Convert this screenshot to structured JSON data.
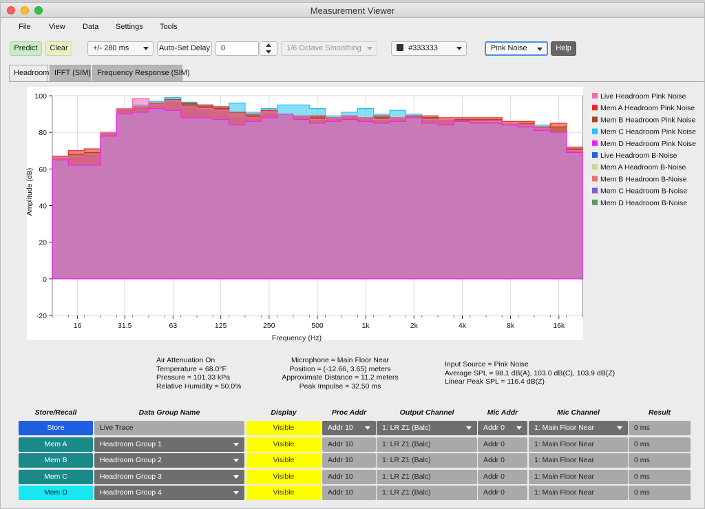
{
  "window": {
    "title": "Measurement Viewer"
  },
  "menu": [
    "File",
    "View",
    "Data",
    "Settings",
    "Tools"
  ],
  "toolbar": {
    "predict": "Predict",
    "clear": "Clear",
    "delay_range": "+/- 280 ms",
    "auto_set_delay": "Auto-Set Delay",
    "delay_value": "0",
    "smoothing": "1/6 Octave Smoothing",
    "color_value": "#333333",
    "color_swatch": "#333333",
    "noise_type": "Pink Noise",
    "help": "Help"
  },
  "tabs": [
    "Headroom",
    "IFFT (SIM)",
    "Frequency Response (SIM)"
  ],
  "chart_data": {
    "type": "area",
    "xlabel": "Frequency (Hz)",
    "ylabel": "Amplitude (dB)",
    "ylim": [
      -20,
      100
    ],
    "x_scale": "log",
    "x_ticks": [
      16,
      31.5,
      63,
      125,
      250,
      500,
      1000,
      2000,
      4000,
      8000,
      16000
    ],
    "x_tick_labels": [
      "16",
      "31.5",
      "63",
      "125",
      "250",
      "500",
      "1k",
      "2k",
      "4k",
      "8k",
      "16k"
    ],
    "y_ticks": [
      -20,
      0,
      20,
      40,
      60,
      80,
      100
    ],
    "bands_hz": [
      12.5,
      16,
      20,
      25,
      31.5,
      40,
      50,
      63,
      80,
      100,
      125,
      160,
      200,
      250,
      315,
      400,
      500,
      630,
      800,
      1000,
      1250,
      1600,
      2000,
      2500,
      3150,
      4000,
      5000,
      6300,
      8000,
      10000,
      12500,
      16000,
      20000
    ],
    "grid": true,
    "legend_position": "right",
    "legend": [
      {
        "name": "Live Headroom Pink Noise",
        "color": "#f06ab0"
      },
      {
        "name": "Mem A Headroom Pink Noise",
        "color": "#ee2222"
      },
      {
        "name": "Mem B Headroom Pink Noise",
        "color": "#a04a20"
      },
      {
        "name": "Mem C Headroom Pink Noise",
        "color": "#22c4ee"
      },
      {
        "name": "Mem D Headroom Pink Noise",
        "color": "#ee22ee"
      },
      {
        "name": "Live Headroom B-Noise",
        "color": "#1f5fe0"
      },
      {
        "name": "Mem A Headroom B-Noise",
        "color": "#c8d890"
      },
      {
        "name": "Mem B Headroom B-Noise",
        "color": "#f07070"
      },
      {
        "name": "Mem C Headroom B-Noise",
        "color": "#7a60d0"
      },
      {
        "name": "Mem D Headroom B-Noise",
        "color": "#5a9a5a"
      }
    ],
    "series": [
      {
        "name": "Mem C Headroom Pink Noise",
        "color": "#22c4ee",
        "values": [
          65.5,
          66,
          67.5,
          80,
          93,
          95,
          97,
          99,
          96.5,
          95,
          94,
          96,
          91,
          93,
          95,
          95,
          93,
          89,
          91,
          93,
          90,
          92,
          90,
          88,
          87,
          87,
          86,
          85,
          84,
          83,
          84,
          80,
          71
        ]
      },
      {
        "name": "Mem A Headroom Pink Noise",
        "color": "#ee2222",
        "values": [
          67,
          70,
          71,
          80,
          93,
          94,
          96,
          97,
          96,
          95,
          94,
          91,
          90,
          92,
          89,
          89,
          89,
          88,
          89,
          88,
          89,
          88,
          89,
          89,
          88,
          88,
          88,
          88,
          86,
          86,
          83,
          85,
          72
        ]
      },
      {
        "name": "Mem B Headroom Pink Noise",
        "color": "#a04a20",
        "values": [
          66,
          68,
          69,
          80,
          92,
          93,
          95,
          98,
          96,
          94,
          93,
          89,
          89,
          91,
          89,
          89,
          88,
          88,
          89,
          88,
          88,
          88,
          88,
          88,
          87,
          87,
          87,
          87,
          85,
          85,
          82,
          83,
          71
        ]
      },
      {
        "name": "Live Headroom Pink Noise",
        "color": "#f06ab0",
        "values": [
          66,
          67,
          68,
          80,
          93,
          98.5,
          95,
          97,
          94,
          93,
          92,
          89,
          88,
          91,
          90,
          89,
          87,
          88,
          89,
          88,
          87,
          88,
          88,
          87,
          87,
          86,
          86,
          86,
          85,
          84,
          82,
          80,
          70
        ]
      },
      {
        "name": "Mem D Headroom Pink Noise",
        "color": "#ee22ee",
        "values": [
          65,
          62,
          62,
          78,
          90,
          91,
          93,
          92,
          88,
          88,
          87,
          84,
          86,
          88,
          90,
          87,
          85,
          86,
          87,
          86,
          85,
          86,
          88,
          85,
          84,
          86,
          85,
          85,
          84,
          83,
          81,
          80,
          69
        ]
      }
    ]
  },
  "info": {
    "left": [
      "Air Attenuation On",
      "Temperature = 68.0°F",
      "Pressure = 101.33  kPa",
      "Relative Humidity = 50.0%"
    ],
    "middle": [
      "Microphone = Main Floor Near",
      "Position = (-12.66, 3.65) meters",
      "Approximate Distance = 11.2 meters",
      "Peak Impulse = 32.50 ms"
    ],
    "right": [
      "Input Source = Pink Noise",
      "Average SPL = 98.1 dB(A),  103.0 dB(C),  103.9 dB(Z)",
      "Linear Peak SPL = 116.4 dB(Z)"
    ]
  },
  "table": {
    "headers": [
      "Store/Recall",
      "Data Group Name",
      "Display",
      "Proc Addr",
      "Output Channel",
      "Mic Addr",
      "Mic Channel",
      "Result"
    ],
    "rows": [
      {
        "store": "Store",
        "store_color": "#1f5fe0",
        "name": "Live Trace",
        "display": "Visible",
        "proc": "Addr 10",
        "output": "1: LR Z1 (Balc)",
        "mic_addr": "Addr 0",
        "mic_channel": "1: Main Floor Near",
        "result": "0 ms"
      },
      {
        "store": "Mem A",
        "store_color": "#1a8a8a",
        "name": "Headroom Group 1",
        "display": "Visible",
        "proc": "Addr 10",
        "output": "1: LR Z1 (Balc)",
        "mic_addr": "Addr 0",
        "mic_channel": "1: Main Floor Near",
        "result": "0 ms"
      },
      {
        "store": "Mem B",
        "store_color": "#1a8a8a",
        "name": "Headroom Group 2",
        "display": "Visible",
        "proc": "Addr 10",
        "output": "1: LR Z1 (Balc)",
        "mic_addr": "Addr 0",
        "mic_channel": "1: Main Floor Near",
        "result": "0 ms"
      },
      {
        "store": "Mem C",
        "store_color": "#1a8a8a",
        "name": "Headroom Group 3",
        "display": "Visible",
        "proc": "Addr 10",
        "output": "1: LR Z1 (Balc)",
        "mic_addr": "Addr 0",
        "mic_channel": "1: Main Floor Near",
        "result": "0 ms"
      },
      {
        "store": "Mem D",
        "store_color": "#18e6f0",
        "name": "Headroom Group 4",
        "display": "Visible",
        "proc": "Addr 10",
        "output": "1: LR Z1 (Balc)",
        "mic_addr": "Addr 0",
        "mic_channel": "1: Main Floor Near",
        "result": "0 ms"
      }
    ]
  }
}
